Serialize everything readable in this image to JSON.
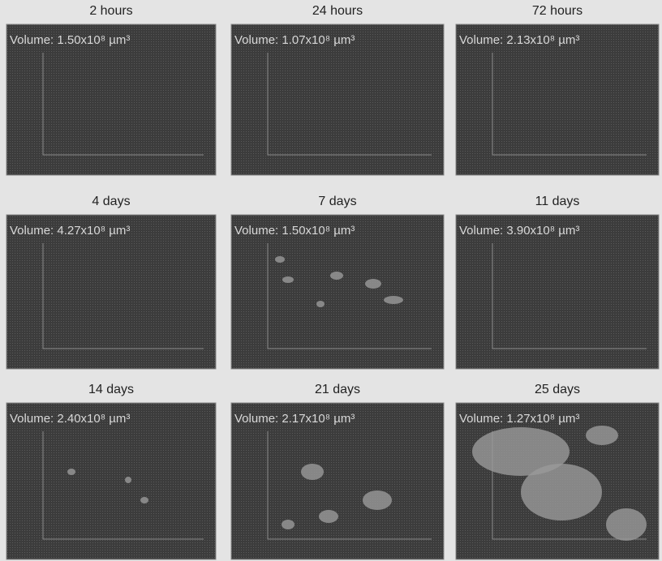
{
  "panels": [
    {
      "title": "2 hours",
      "volume": "Volume: 1.50x10⁸ µm³"
    },
    {
      "title": "24 hours",
      "volume": "Volume: 1.07x10⁸ µm³"
    },
    {
      "title": "72 hours",
      "volume": "Volume: 2.13x10⁸ µm³"
    },
    {
      "title": "4 days",
      "volume": "Volume: 4.27x10⁸ µm³"
    },
    {
      "title": "7 days",
      "volume": "Volume: 1.50x10⁸ µm³"
    },
    {
      "title": "11 days",
      "volume": "Volume: 3.90x10⁸ µm³"
    },
    {
      "title": "14 days",
      "volume": "Volume: 2.40x10⁸ µm³"
    },
    {
      "title": "21 days",
      "volume": "Volume: 2.17x10⁸ µm³"
    },
    {
      "title": "25 days",
      "volume": "Volume: 1.27x10⁸ µm³"
    }
  ]
}
